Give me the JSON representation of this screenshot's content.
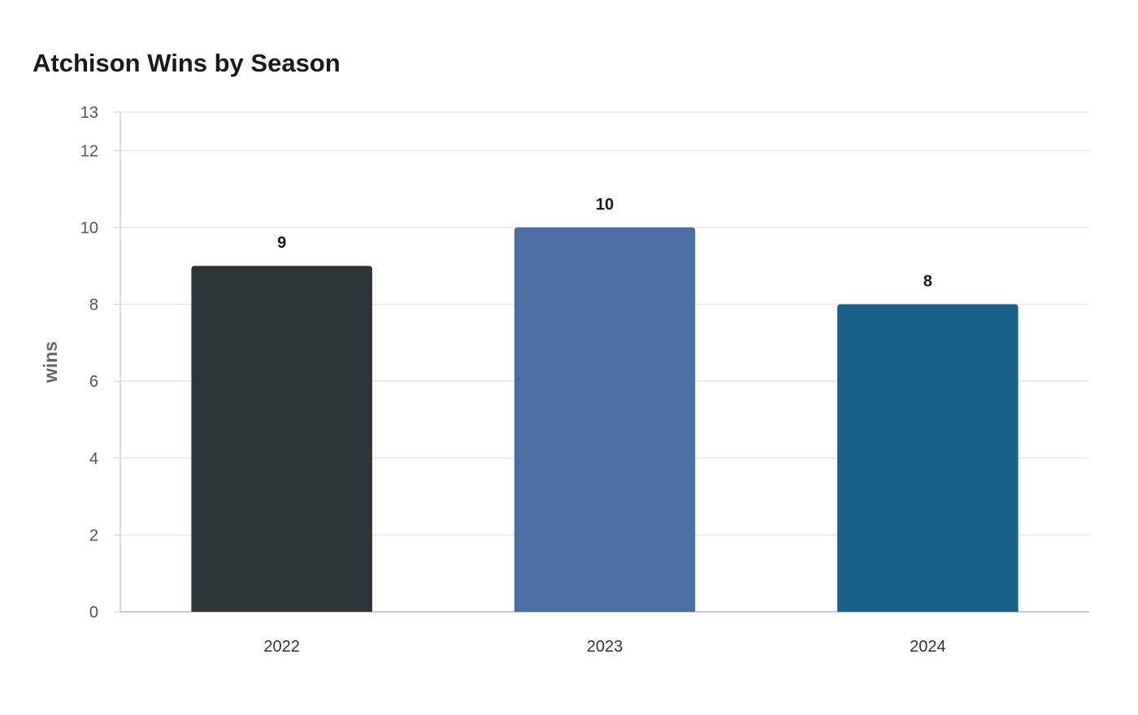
{
  "chart_data": {
    "type": "bar",
    "title": "Atchison Wins by Season",
    "xlabel": "",
    "ylabel": "wins",
    "categories": [
      "2022",
      "2023",
      "2024"
    ],
    "values": [
      9,
      10,
      8
    ],
    "colors": [
      "#2e3537",
      "#4a6fa5",
      "#186088"
    ],
    "ylim": [
      0,
      13
    ],
    "yticks": [
      0,
      2,
      4,
      6,
      8,
      10,
      12,
      13
    ],
    "data_labels": [
      "9",
      "10",
      "8"
    ],
    "grid": true,
    "legend": "none"
  }
}
